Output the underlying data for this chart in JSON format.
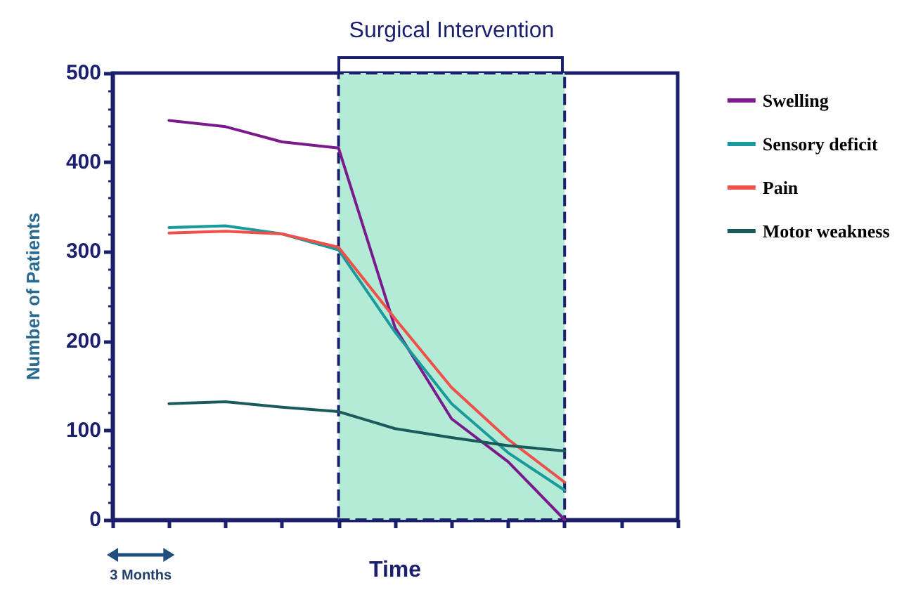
{
  "chart_data": {
    "type": "line",
    "xlabel": "Time",
    "ylabel": "Number of Patients",
    "categories": [
      null,
      null,
      null,
      null,
      null,
      null,
      null,
      null,
      null,
      null,
      null
    ],
    "ylim": [
      0,
      500
    ],
    "yticks": [
      0,
      100,
      200,
      300,
      400,
      500
    ],
    "tick_labels": "y",
    "grid": false,
    "legend": "right",
    "marker": "none",
    "line_style": "solid",
    "series": [
      {
        "name": "Swelling",
        "color": "#7b1a8c",
        "values": [
          null,
          447,
          440,
          423,
          416,
          215,
          113,
          65,
          0,
          null,
          null
        ]
      },
      {
        "name": "Sensory deficit",
        "color": "#1a9a9a",
        "values": [
          null,
          327,
          329,
          320,
          302,
          210,
          130,
          75,
          33,
          null,
          null
        ]
      },
      {
        "name": "Pain",
        "color": "#f0504a",
        "values": [
          null,
          321,
          323,
          320,
          305,
          225,
          148,
          90,
          42,
          null,
          null
        ]
      },
      {
        "name": "Motor weakness",
        "color": "#1a5a5a",
        "values": [
          null,
          130,
          132,
          126,
          121,
          102,
          92,
          83,
          77,
          null,
          null
        ]
      }
    ],
    "annotations": [
      "Surgical Intervention",
      "3 Months"
    ]
  }
}
